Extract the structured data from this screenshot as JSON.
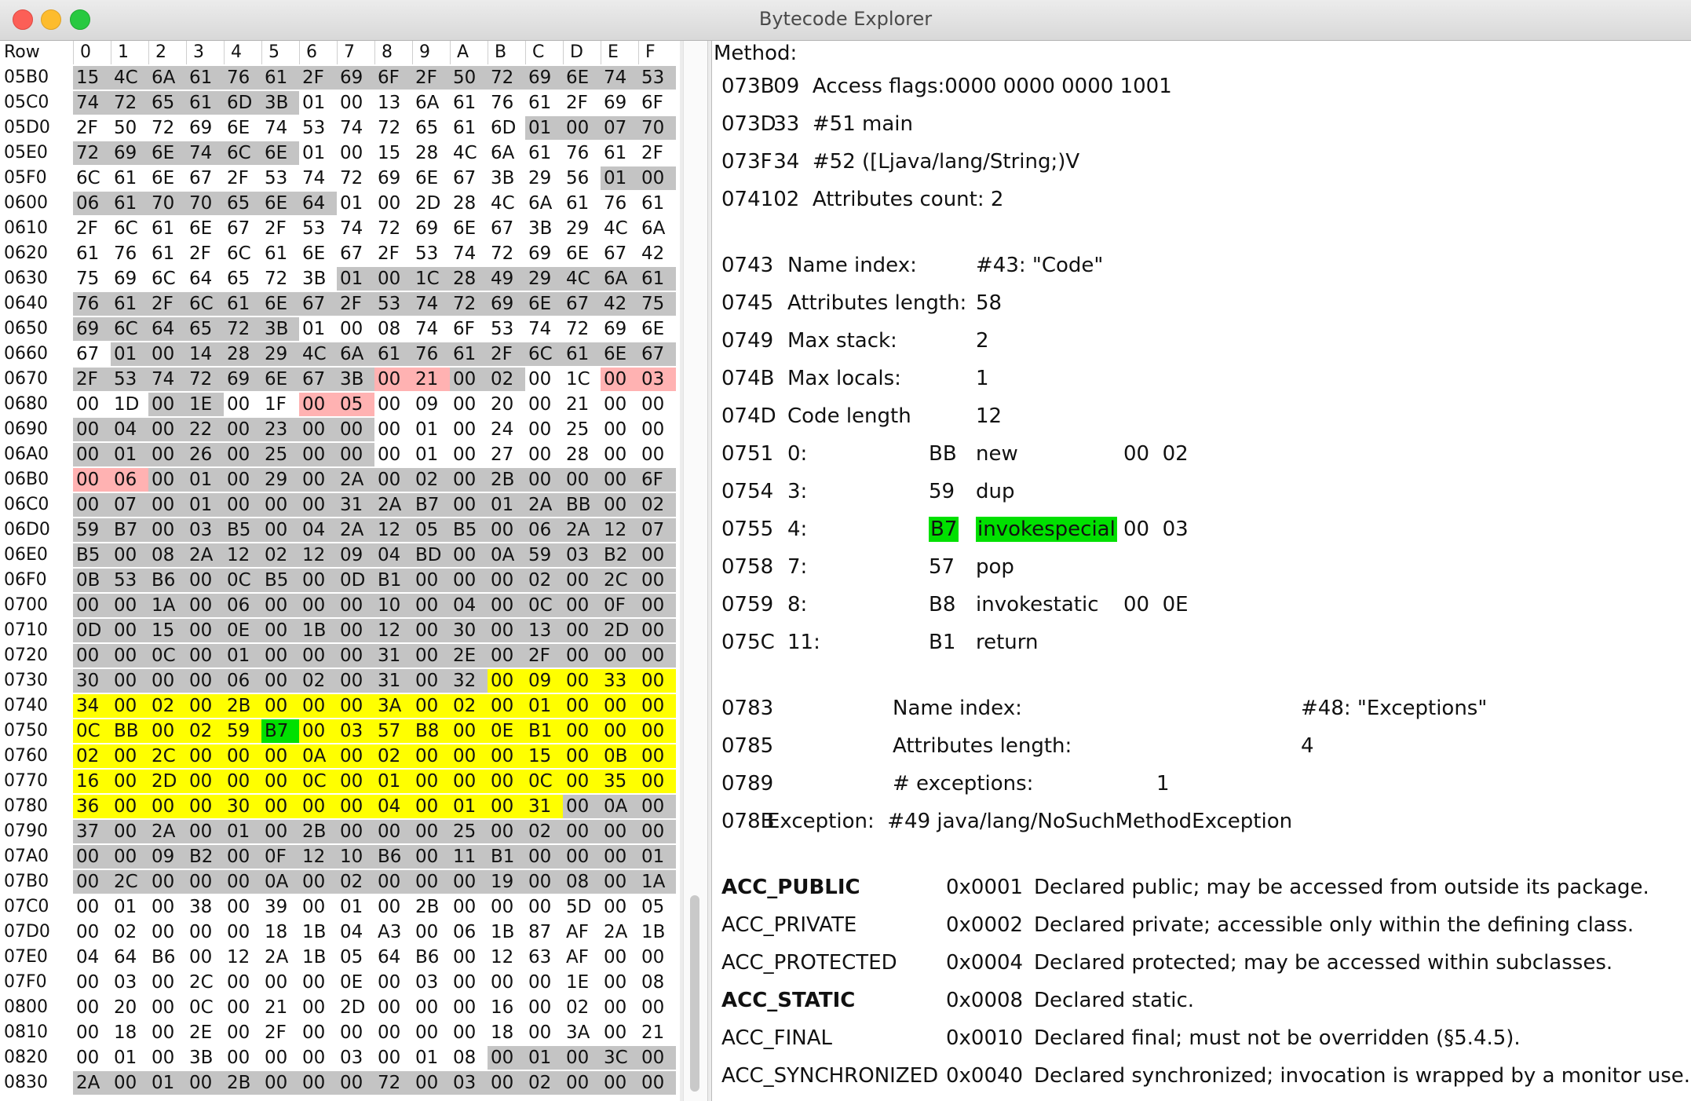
{
  "window": {
    "title": "Bytecode Explorer"
  },
  "hex": {
    "row_header": "Row",
    "col_headers": [
      "0",
      "1",
      "2",
      "3",
      "4",
      "5",
      "6",
      "7",
      "8",
      "9",
      "A",
      "B",
      "C",
      "D",
      "E",
      "F"
    ],
    "rows": [
      {
        "label": "05B0",
        "cells": [
          "15",
          "4C",
          "6A",
          "61",
          "76",
          "61",
          "2F",
          "69",
          "6F",
          "2F",
          "50",
          "72",
          "69",
          "6E",
          "74",
          "53"
        ],
        "colors": "gggggggggggggggg"
      },
      {
        "label": "05C0",
        "cells": [
          "74",
          "72",
          "65",
          "61",
          "6D",
          "3B",
          "01",
          "00",
          "13",
          "6A",
          "61",
          "76",
          "61",
          "2F",
          "69",
          "6F"
        ],
        "colors": "gggggg.........."
      },
      {
        "label": "05D0",
        "cells": [
          "2F",
          "50",
          "72",
          "69",
          "6E",
          "74",
          "53",
          "74",
          "72",
          "65",
          "61",
          "6D",
          "01",
          "00",
          "07",
          "70"
        ],
        "colors": "............gggg"
      },
      {
        "label": "05E0",
        "cells": [
          "72",
          "69",
          "6E",
          "74",
          "6C",
          "6E",
          "01",
          "00",
          "15",
          "28",
          "4C",
          "6A",
          "61",
          "76",
          "61",
          "2F"
        ],
        "colors": "gggggg.........."
      },
      {
        "label": "05F0",
        "cells": [
          "6C",
          "61",
          "6E",
          "67",
          "2F",
          "53",
          "74",
          "72",
          "69",
          "6E",
          "67",
          "3B",
          "29",
          "56",
          "01",
          "00"
        ],
        "colors": "..............gg"
      },
      {
        "label": "0600",
        "cells": [
          "06",
          "61",
          "70",
          "70",
          "65",
          "6E",
          "64",
          "01",
          "00",
          "2D",
          "28",
          "4C",
          "6A",
          "61",
          "76",
          "61"
        ],
        "colors": "ggggggg........."
      },
      {
        "label": "0610",
        "cells": [
          "2F",
          "6C",
          "61",
          "6E",
          "67",
          "2F",
          "53",
          "74",
          "72",
          "69",
          "6E",
          "67",
          "3B",
          "29",
          "4C",
          "6A"
        ],
        "colors": "................"
      },
      {
        "label": "0620",
        "cells": [
          "61",
          "76",
          "61",
          "2F",
          "6C",
          "61",
          "6E",
          "67",
          "2F",
          "53",
          "74",
          "72",
          "69",
          "6E",
          "67",
          "42"
        ],
        "colors": "................"
      },
      {
        "label": "0630",
        "cells": [
          "75",
          "69",
          "6C",
          "64",
          "65",
          "72",
          "3B",
          "01",
          "00",
          "1C",
          "28",
          "49",
          "29",
          "4C",
          "6A",
          "61"
        ],
        "colors": ".......ggggggggg"
      },
      {
        "label": "0640",
        "cells": [
          "76",
          "61",
          "2F",
          "6C",
          "61",
          "6E",
          "67",
          "2F",
          "53",
          "74",
          "72",
          "69",
          "6E",
          "67",
          "42",
          "75"
        ],
        "colors": "gggggggggggggggg"
      },
      {
        "label": "0650",
        "cells": [
          "69",
          "6C",
          "64",
          "65",
          "72",
          "3B",
          "01",
          "00",
          "08",
          "74",
          "6F",
          "53",
          "74",
          "72",
          "69",
          "6E"
        ],
        "colors": "gggggg.........."
      },
      {
        "label": "0660",
        "cells": [
          "67",
          "01",
          "00",
          "14",
          "28",
          "29",
          "4C",
          "6A",
          "61",
          "76",
          "61",
          "2F",
          "6C",
          "61",
          "6E",
          "67"
        ],
        "colors": ".ggggggggggggggg"
      },
      {
        "label": "0670",
        "cells": [
          "2F",
          "53",
          "74",
          "72",
          "69",
          "6E",
          "67",
          "3B",
          "00",
          "21",
          "00",
          "02",
          "00",
          "1C",
          "00",
          "03"
        ],
        "colors": "ggggggggppgg..pp"
      },
      {
        "label": "0680",
        "cells": [
          "00",
          "1D",
          "00",
          "1E",
          "00",
          "1F",
          "00",
          "05",
          "00",
          "09",
          "00",
          "20",
          "00",
          "21",
          "00",
          "00"
        ],
        "colors": "..gg..pp........"
      },
      {
        "label": "0690",
        "cells": [
          "00",
          "04",
          "00",
          "22",
          "00",
          "23",
          "00",
          "00",
          "00",
          "01",
          "00",
          "24",
          "00",
          "25",
          "00",
          "00"
        ],
        "colors": "gggggggg........"
      },
      {
        "label": "06A0",
        "cells": [
          "00",
          "01",
          "00",
          "26",
          "00",
          "25",
          "00",
          "00",
          "00",
          "01",
          "00",
          "27",
          "00",
          "28",
          "00",
          "00"
        ],
        "colors": "gggggggg........"
      },
      {
        "label": "06B0",
        "cells": [
          "00",
          "06",
          "00",
          "01",
          "00",
          "29",
          "00",
          "2A",
          "00",
          "02",
          "00",
          "2B",
          "00",
          "00",
          "00",
          "6F"
        ],
        "colors": "ppgggggggggggggg"
      },
      {
        "label": "06C0",
        "cells": [
          "00",
          "07",
          "00",
          "01",
          "00",
          "00",
          "00",
          "31",
          "2A",
          "B7",
          "00",
          "01",
          "2A",
          "BB",
          "00",
          "02"
        ],
        "colors": "gggggggggggggggg"
      },
      {
        "label": "06D0",
        "cells": [
          "59",
          "B7",
          "00",
          "03",
          "B5",
          "00",
          "04",
          "2A",
          "12",
          "05",
          "B5",
          "00",
          "06",
          "2A",
          "12",
          "07"
        ],
        "colors": "gggggggggggggggg"
      },
      {
        "label": "06E0",
        "cells": [
          "B5",
          "00",
          "08",
          "2A",
          "12",
          "02",
          "12",
          "09",
          "04",
          "BD",
          "00",
          "0A",
          "59",
          "03",
          "B2",
          "00"
        ],
        "colors": "gggggggggggggggg"
      },
      {
        "label": "06F0",
        "cells": [
          "0B",
          "53",
          "B6",
          "00",
          "0C",
          "B5",
          "00",
          "0D",
          "B1",
          "00",
          "00",
          "00",
          "02",
          "00",
          "2C",
          "00"
        ],
        "colors": "gggggggggggggggg"
      },
      {
        "label": "0700",
        "cells": [
          "00",
          "00",
          "1A",
          "00",
          "06",
          "00",
          "00",
          "00",
          "10",
          "00",
          "04",
          "00",
          "0C",
          "00",
          "0F",
          "00"
        ],
        "colors": "gggggggggggggggg"
      },
      {
        "label": "0710",
        "cells": [
          "0D",
          "00",
          "15",
          "00",
          "0E",
          "00",
          "1B",
          "00",
          "12",
          "00",
          "30",
          "00",
          "13",
          "00",
          "2D",
          "00"
        ],
        "colors": "gggggggggggggggg"
      },
      {
        "label": "0720",
        "cells": [
          "00",
          "00",
          "0C",
          "00",
          "01",
          "00",
          "00",
          "00",
          "31",
          "00",
          "2E",
          "00",
          "2F",
          "00",
          "00",
          "00"
        ],
        "colors": "gggggggggggggggg"
      },
      {
        "label": "0730",
        "cells": [
          "30",
          "00",
          "00",
          "00",
          "06",
          "00",
          "02",
          "00",
          "31",
          "00",
          "32",
          "00",
          "09",
          "00",
          "33",
          "00"
        ],
        "colors": "gggggggggggyyyyy"
      },
      {
        "label": "0740",
        "cells": [
          "34",
          "00",
          "02",
          "00",
          "2B",
          "00",
          "00",
          "00",
          "3A",
          "00",
          "02",
          "00",
          "01",
          "00",
          "00",
          "00"
        ],
        "colors": "yyyyyyyyyyyyyyyy"
      },
      {
        "label": "0750",
        "cells": [
          "0C",
          "BB",
          "00",
          "02",
          "59",
          "B7",
          "00",
          "03",
          "57",
          "B8",
          "00",
          "0E",
          "B1",
          "00",
          "00",
          "00"
        ],
        "colors": "yyyyyGyyyyyyyyyy"
      },
      {
        "label": "0760",
        "cells": [
          "02",
          "00",
          "2C",
          "00",
          "00",
          "00",
          "0A",
          "00",
          "02",
          "00",
          "00",
          "00",
          "15",
          "00",
          "0B",
          "00"
        ],
        "colors": "yyyyyyyyyyyyyyyy"
      },
      {
        "label": "0770",
        "cells": [
          "16",
          "00",
          "2D",
          "00",
          "00",
          "00",
          "0C",
          "00",
          "01",
          "00",
          "00",
          "00",
          "0C",
          "00",
          "35",
          "00"
        ],
        "colors": "yyyyyyyyyyyyyyyy"
      },
      {
        "label": "0780",
        "cells": [
          "36",
          "00",
          "00",
          "00",
          "30",
          "00",
          "00",
          "00",
          "04",
          "00",
          "01",
          "00",
          "31",
          "00",
          "0A",
          "00"
        ],
        "colors": "yyyyyyyyyyyyyggg"
      },
      {
        "label": "0790",
        "cells": [
          "37",
          "00",
          "2A",
          "00",
          "01",
          "00",
          "2B",
          "00",
          "00",
          "00",
          "25",
          "00",
          "02",
          "00",
          "00",
          "00"
        ],
        "colors": "gggggggggggggggg"
      },
      {
        "label": "07A0",
        "cells": [
          "00",
          "00",
          "09",
          "B2",
          "00",
          "0F",
          "12",
          "10",
          "B6",
          "00",
          "11",
          "B1",
          "00",
          "00",
          "00",
          "01"
        ],
        "colors": "gggggggggggggggg"
      },
      {
        "label": "07B0",
        "cells": [
          "00",
          "2C",
          "00",
          "00",
          "00",
          "0A",
          "00",
          "02",
          "00",
          "00",
          "00",
          "19",
          "00",
          "08",
          "00",
          "1A"
        ],
        "colors": "gggggggggggggggg"
      },
      {
        "label": "07C0",
        "cells": [
          "00",
          "01",
          "00",
          "38",
          "00",
          "39",
          "00",
          "01",
          "00",
          "2B",
          "00",
          "00",
          "00",
          "5D",
          "00",
          "05"
        ],
        "colors": "................"
      },
      {
        "label": "07D0",
        "cells": [
          "00",
          "02",
          "00",
          "00",
          "00",
          "18",
          "1B",
          "04",
          "A3",
          "00",
          "06",
          "1B",
          "87",
          "AF",
          "2A",
          "1B"
        ],
        "colors": "................"
      },
      {
        "label": "07E0",
        "cells": [
          "04",
          "64",
          "B6",
          "00",
          "12",
          "2A",
          "1B",
          "05",
          "64",
          "B6",
          "00",
          "12",
          "63",
          "AF",
          "00",
          "00"
        ],
        "colors": "................"
      },
      {
        "label": "07F0",
        "cells": [
          "00",
          "03",
          "00",
          "2C",
          "00",
          "00",
          "00",
          "0E",
          "00",
          "03",
          "00",
          "00",
          "00",
          "1E",
          "00",
          "08"
        ],
        "colors": "................"
      },
      {
        "label": "0800",
        "cells": [
          "00",
          "20",
          "00",
          "0C",
          "00",
          "21",
          "00",
          "2D",
          "00",
          "00",
          "00",
          "16",
          "00",
          "02",
          "00",
          "00"
        ],
        "colors": "................"
      },
      {
        "label": "0810",
        "cells": [
          "00",
          "18",
          "00",
          "2E",
          "00",
          "2F",
          "00",
          "00",
          "00",
          "00",
          "00",
          "18",
          "00",
          "3A",
          "00",
          "21"
        ],
        "colors": "................"
      },
      {
        "label": "0820",
        "cells": [
          "00",
          "01",
          "00",
          "3B",
          "00",
          "00",
          "00",
          "03",
          "00",
          "01",
          "08",
          "00",
          "01",
          "00",
          "3C",
          "00"
        ],
        "colors": "...........ggggg"
      },
      {
        "label": "0830",
        "cells": [
          "2A",
          "00",
          "01",
          "00",
          "2B",
          "00",
          "00",
          "00",
          "72",
          "00",
          "03",
          "00",
          "02",
          "00",
          "00",
          "00"
        ],
        "colors": "gggggggggggggggg"
      }
    ]
  },
  "method": {
    "header": "Method:",
    "lines": [
      {
        "addr": "073B",
        "text": " 09  Access flags:0000 0000 0000 1001"
      },
      {
        "addr": "073D",
        "text": " 33  #51 main"
      },
      {
        "addr": "073F",
        "text": " 34  #52 ([Ljava/lang/String;)V"
      },
      {
        "addr": "0741",
        "text": " 02  Attributes count: 2"
      }
    ],
    "code_attr": [
      {
        "addr": "0743",
        "label": "Name index:",
        "value": "#43: \"Code\""
      },
      {
        "addr": "0745",
        "label": "Attributes length:",
        "value": "58"
      },
      {
        "addr": "0749",
        "label": "Max stack:",
        "value": "2"
      },
      {
        "addr": "074B",
        "label": "Max locals:",
        "value": "1"
      },
      {
        "addr": "074D",
        "label": "Code length",
        "value": "12"
      }
    ],
    "instructions": [
      {
        "addr": "0751",
        "pc": "0:",
        "opcode": "BB",
        "mnemonic": "new",
        "operands": "00  02",
        "highlight": false
      },
      {
        "addr": "0754",
        "pc": "3:",
        "opcode": "59",
        "mnemonic": "dup",
        "operands": "",
        "highlight": false
      },
      {
        "addr": "0755",
        "pc": "4:",
        "opcode": "B7",
        "mnemonic": "invokespecial",
        "operands": "00  03",
        "highlight": true
      },
      {
        "addr": "0758",
        "pc": "7:",
        "opcode": "57",
        "mnemonic": "pop",
        "operands": "",
        "highlight": false
      },
      {
        "addr": "0759",
        "pc": "8:",
        "opcode": "B8",
        "mnemonic": "invokestatic",
        "operands": "00  0E",
        "highlight": false
      },
      {
        "addr": "075C",
        "pc": "11:",
        "opcode": "B1",
        "mnemonic": "return",
        "operands": "",
        "highlight": false
      }
    ],
    "exceptions_attr": [
      {
        "addr": "0783",
        "label": "Name index:",
        "value": "#48: \"Exceptions\""
      },
      {
        "addr": "0785",
        "label": "Attributes length:",
        "value": "4"
      },
      {
        "addr": "0789",
        "label": "# exceptions:",
        "value": "1"
      }
    ],
    "exception_line": {
      "addr": "078B",
      "text": "Exception:  #49 java/lang/NoSuchMethodException"
    },
    "flags": [
      {
        "name": "ACC_PUBLIC",
        "bold": true,
        "value": "0x0001",
        "desc": "Declared public; may be accessed from outside its package."
      },
      {
        "name": "ACC_PRIVATE",
        "bold": false,
        "value": "0x0002",
        "desc": "Declared private; accessible only within the defining class."
      },
      {
        "name": "ACC_PROTECTED",
        "bold": false,
        "value": "0x0004",
        "desc": "Declared protected; may be accessed within subclasses."
      },
      {
        "name": "ACC_STATIC",
        "bold": true,
        "value": "0x0008",
        "desc": "Declared static."
      },
      {
        "name": "ACC_FINAL",
        "bold": false,
        "value": "0x0010",
        "desc": "Declared final; must not be overridden (§5.4.5)."
      },
      {
        "name": "ACC_SYNCHRONIZED",
        "bold": false,
        "value": "0x0040",
        "desc": "Declared synchronized; invocation is wrapped by a monitor use."
      }
    ]
  }
}
